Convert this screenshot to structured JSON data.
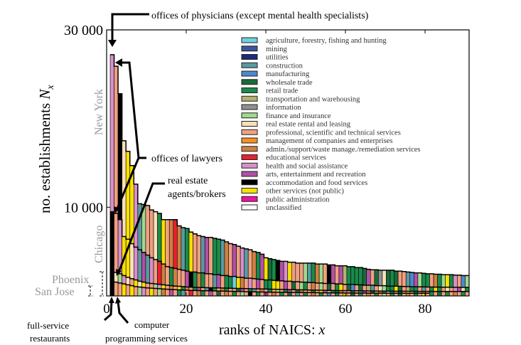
{
  "chart_data": {
    "type": "bar",
    "subtype": "overlaid ranked bars per city",
    "xlabel": "ranks of NAICS: ",
    "xlabel_var": "x",
    "ylabel": "no. establishments ",
    "ylabel_var": "N",
    "ylabel_sub": "x",
    "xlim": [
      0,
      91
    ],
    "ylim": [
      0,
      30000
    ],
    "xticks": [
      0,
      20,
      40,
      60,
      80
    ],
    "yticks": [
      {
        "value": 10000,
        "label": "10 000"
      },
      {
        "value": 30000,
        "label": "30 000"
      }
    ],
    "legend_position": "top-right",
    "sectors": [
      {
        "name": "agriculture, forestry, fishing and hunting",
        "color": "#6fd0e0"
      },
      {
        "name": "mining",
        "color": "#3a55a0"
      },
      {
        "name": "utilities",
        "color": "#1c2a80"
      },
      {
        "name": "construction",
        "color": "#5a9aa0"
      },
      {
        "name": "manufacturing",
        "color": "#4a8ad0"
      },
      {
        "name": "wholesale trade",
        "color": "#1a6a3a"
      },
      {
        "name": "retail trade",
        "color": "#1a8a4a"
      },
      {
        "name": "transportation and warehousing",
        "color": "#b8b070"
      },
      {
        "name": "information",
        "color": "#909090"
      },
      {
        "name": "finance and insurance",
        "color": "#a0d890"
      },
      {
        "name": "real estate rental and leasing",
        "color": "#f8e0b8"
      },
      {
        "name": "professional, scientific and technical services",
        "color": "#f0a080"
      },
      {
        "name": "management of companies and enterprises",
        "color": "#f89020"
      },
      {
        "name": "admin./support/waste manage./remediation services",
        "color": "#d08040"
      },
      {
        "name": "educational services",
        "color": "#e82030"
      },
      {
        "name": "health and social assistance",
        "color": "#d890c8"
      },
      {
        "name": "arts, entertainment and recreation",
        "color": "#b050a8"
      },
      {
        "name": "accommodation and food services",
        "color": "#000000"
      },
      {
        "name": "other services (not public)",
        "color": "#f8e000"
      },
      {
        "name": "public administration",
        "color": "#f010a0"
      },
      {
        "name": "unclassified",
        "color": "#ffffff"
      }
    ],
    "series": [
      {
        "name": "New York",
        "values": [
          27200,
          25900,
          22800,
          17500,
          16300,
          14700,
          12600,
          10400,
          10300,
          10200,
          9700,
          9500,
          9300,
          8600,
          8600,
          8600,
          8600,
          7900,
          7700,
          7600,
          7200,
          7000,
          6800,
          6700,
          6600,
          6600,
          6500,
          6400,
          6300,
          6100,
          5900,
          5800,
          5600,
          5400,
          5300,
          5200,
          5000,
          4900,
          4700,
          4300,
          4200,
          4100,
          4000,
          3900,
          3900,
          3800,
          3800,
          3700,
          3700,
          3700,
          3700,
          3700,
          3600,
          3600,
          3600,
          3500,
          3500,
          3400,
          3400,
          3400,
          3300,
          3300,
          3200,
          3200,
          3100,
          3000,
          2950,
          2950,
          2900,
          2900,
          2900,
          2900,
          2800,
          2800,
          2750,
          2700,
          2650,
          2600,
          2600,
          2550,
          2500,
          2500,
          2450,
          2450,
          2400,
          2400,
          2400,
          2350,
          2350,
          2300,
          2300
        ],
        "sectors": [
          15,
          11,
          17,
          10,
          18,
          18,
          15,
          3,
          9,
          11,
          11,
          10,
          6,
          18,
          11,
          13,
          14,
          13,
          3,
          6,
          18,
          11,
          11,
          3,
          16,
          11,
          6,
          6,
          3,
          13,
          11,
          16,
          11,
          15,
          3,
          11,
          13,
          6,
          16,
          18,
          5,
          6,
          17,
          16,
          15,
          18,
          11,
          11,
          11,
          9,
          3,
          6,
          13,
          9,
          11,
          17,
          16,
          11,
          16,
          7,
          6,
          6,
          6,
          6,
          5,
          16,
          11,
          5,
          8,
          10,
          5,
          6,
          5,
          11,
          11,
          3,
          4,
          16,
          9,
          6,
          6,
          11,
          13,
          6,
          9,
          18,
          6,
          15,
          11,
          4,
          9
        ]
      },
      {
        "name": "Chicago",
        "values": [
          9500,
          9300,
          8600,
          6700,
          6400,
          5900,
          5500,
          5200,
          4900,
          4600,
          4300,
          4100,
          3900,
          3600,
          3300,
          3200,
          3100,
          3000,
          2900,
          2800,
          2700,
          2700,
          2600,
          2600,
          2500,
          2500,
          2400,
          2400,
          2300,
          2300,
          2200,
          2200,
          2100,
          2100,
          2000,
          2000,
          1950,
          1900,
          1850,
          1800,
          1800,
          1750,
          1700,
          1700,
          1650,
          1650,
          1600,
          1600,
          1550,
          1550,
          1500,
          1500,
          1450,
          1450,
          1400,
          1400,
          1400,
          1350,
          1350,
          1300,
          1300,
          1300,
          1250,
          1250,
          1200,
          1200,
          1200,
          1150,
          1150,
          1150,
          1100,
          1100,
          1100,
          1080,
          1060,
          1050,
          1040,
          1030,
          1020,
          1010,
          1000,
          1000,
          990,
          990,
          980,
          980,
          975,
          970,
          970,
          965,
          960
        ],
        "sectors": [
          17,
          11,
          15,
          18,
          18,
          10,
          15,
          3,
          16,
          3,
          15,
          11,
          14,
          13,
          11,
          6,
          13,
          11,
          11,
          16,
          17,
          6,
          13,
          6,
          11,
          11,
          3,
          16,
          11,
          6,
          6,
          0,
          18,
          13,
          11,
          15,
          11,
          16,
          11,
          6,
          6,
          18,
          18,
          11,
          16,
          11,
          5,
          11,
          9,
          6,
          11,
          13,
          11,
          9,
          11,
          5,
          11,
          6,
          18,
          11,
          5,
          4,
          11,
          5,
          11,
          7,
          3,
          11,
          10,
          9,
          6,
          6,
          18,
          5,
          11,
          7,
          6,
          6,
          11,
          3,
          11,
          6,
          18,
          6,
          11,
          10,
          11,
          15,
          16,
          10,
          6
        ]
      },
      {
        "name": "Phoenix",
        "values": [
          2700,
          2650,
          2500,
          2300,
          2100,
          1950,
          1800,
          1650,
          1550,
          1450,
          1400,
          1350,
          1300,
          1250,
          1200,
          1150,
          1100,
          1080,
          1050,
          1000,
          980,
          960,
          950,
          940,
          930,
          920,
          910,
          900,
          890,
          880,
          860,
          850,
          840,
          830,
          820,
          810,
          800,
          790,
          780,
          770,
          760,
          750,
          740,
          730,
          720,
          710,
          700,
          690,
          680,
          670,
          660,
          650,
          640,
          640,
          630,
          620,
          610,
          600,
          600,
          590,
          590,
          580,
          580,
          570,
          570,
          560,
          560,
          550,
          550,
          540,
          540,
          540,
          530,
          530,
          530,
          520,
          520,
          520,
          510,
          510,
          510,
          510,
          500,
          500,
          500,
          500,
          500,
          500,
          500,
          500,
          500
        ],
        "sectors": [
          17,
          10,
          9,
          15,
          10,
          11,
          18,
          10,
          18,
          11,
          11,
          9,
          15,
          18,
          11,
          13,
          11,
          18,
          6,
          13,
          11,
          6,
          16,
          11,
          3,
          17,
          6,
          11,
          13,
          6,
          11,
          11,
          5,
          16,
          11,
          6,
          3,
          11,
          13,
          11,
          6,
          11,
          9,
          11,
          6,
          16,
          11,
          5,
          13,
          11,
          11,
          6,
          11,
          18,
          16,
          11,
          6,
          5,
          13,
          11,
          11,
          6,
          11,
          3,
          16,
          11,
          5,
          11,
          13,
          6,
          11,
          6,
          11,
          5,
          11,
          18,
          11,
          6,
          11,
          13,
          11,
          6,
          11,
          5,
          11,
          6,
          11,
          13,
          11,
          6,
          11
        ]
      },
      {
        "name": "San Jose",
        "values": [
          1600,
          1550,
          1450,
          1350,
          1250,
          1150,
          1050,
          1000,
          950,
          900,
          870,
          840,
          810,
          780,
          750,
          720,
          700,
          680,
          660,
          640,
          620,
          610,
          600,
          590,
          580,
          570,
          560,
          550,
          540,
          530,
          520,
          510,
          500,
          490,
          480,
          470,
          460,
          450,
          440,
          430,
          420,
          420,
          410,
          410,
          400,
          400,
          390,
          390,
          380,
          380,
          370,
          370,
          360,
          360,
          350,
          350,
          340,
          340,
          340,
          330,
          330,
          330,
          320,
          320,
          320,
          310,
          310,
          310,
          310,
          300,
          300,
          300,
          300,
          300,
          300,
          300,
          300,
          300,
          300,
          300,
          300
        ],
        "sectors": [
          17,
          11,
          11,
          18,
          11,
          18,
          11,
          9,
          15,
          11,
          18,
          11,
          9,
          13,
          11,
          16,
          11,
          6,
          3,
          11,
          14,
          11,
          13,
          6,
          11,
          16,
          11,
          5,
          11,
          13,
          11,
          6,
          11,
          9,
          11,
          17,
          11,
          6,
          11,
          16,
          11,
          13,
          11,
          6,
          11,
          5,
          11,
          3,
          11,
          6,
          11,
          13,
          11,
          6,
          11,
          4,
          11,
          6,
          11,
          18,
          11,
          5,
          11,
          6,
          11,
          13,
          11,
          6,
          11,
          9,
          11,
          6,
          11,
          5,
          11,
          13,
          11,
          6,
          11,
          18,
          11
        ]
      }
    ],
    "annotations": {
      "physicians": "offices of physicians (except mental health specialists)",
      "lawyers": "offices of lawyers",
      "real_estate_1": "real estate",
      "real_estate_2": "agents/brokers",
      "restaurants_1": "full-service",
      "restaurants_2": "restaurants",
      "computer_1": "computer",
      "computer_2": "programming services"
    },
    "city_labels": {
      "new_york": "New York",
      "chicago": "Chicago",
      "phoenix": "Phoenix",
      "san_jose": "San Jose"
    }
  }
}
